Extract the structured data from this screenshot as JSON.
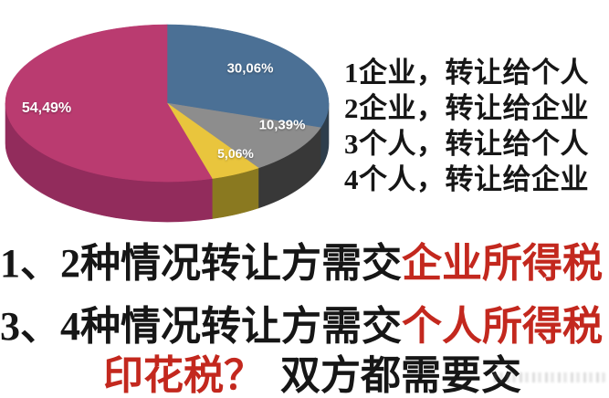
{
  "chart_data": {
    "type": "pie",
    "style": "3d",
    "title": "",
    "unit": "%",
    "direction": "clockwise",
    "start_angle_deg": 0,
    "legend_position": "right",
    "slices": [
      {
        "name": "slice-1",
        "label": "30,06%",
        "value": 30.06,
        "color": "#4b7095",
        "side_color": "#2e3e4c"
      },
      {
        "name": "slice-2",
        "label": "10,39%",
        "value": 10.39,
        "color": "#8d8d8d",
        "side_color": "#383838"
      },
      {
        "name": "slice-3",
        "label": "5,06%",
        "value": 5.06,
        "color": "#e9c53d",
        "side_color": "#8a7920"
      },
      {
        "name": "slice-4",
        "label": "54,49%",
        "value": 54.49,
        "color": "#ba3b70",
        "side_color": "#922c5c"
      }
    ]
  },
  "legend": {
    "items": [
      {
        "label": "1企业，转让给个人"
      },
      {
        "label": "2企业，转让给企业"
      },
      {
        "label": "3个人，转让给个人"
      },
      {
        "label": "4个人，转让给企业"
      }
    ]
  },
  "notes": {
    "line1": {
      "prefix": "1、2种情况转让方需交",
      "highlight": "企业所得税"
    },
    "line2": {
      "prefix": "3、4种情况转让方需交",
      "highlight": "个人所得税"
    },
    "line3": {
      "highlight": "印花税？",
      "suffix": "双方都需要交"
    }
  },
  "colors": {
    "highlight_red": "#c3281e",
    "text_black": "#161616",
    "pie_label_white": "#ffffff",
    "background": "#ffffff"
  }
}
